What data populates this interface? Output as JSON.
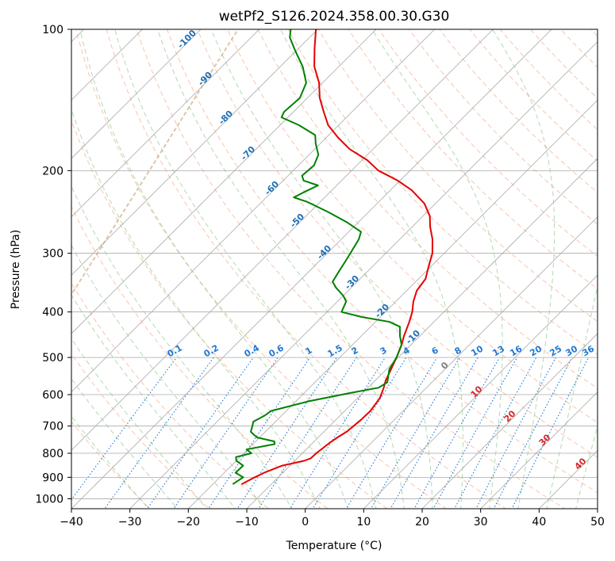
{
  "chart_data": {
    "type": "line",
    "title": "wetPf2_S126.2024.358.00.30.G30",
    "xlabel": "Temperature (°C)",
    "ylabel": "Pressure (hPa)",
    "xlim": [
      -40,
      50
    ],
    "ylim": [
      1050,
      100
    ],
    "y_scale": "log",
    "skew": "skew-T",
    "grid": true,
    "x_ticks": [
      "−40",
      "−30",
      "−20",
      "−10",
      "0",
      "10",
      "20",
      "30",
      "40",
      "50"
    ],
    "y_ticks": [
      "100",
      "200",
      "300",
      "400",
      "500",
      "600",
      "700",
      "800",
      "900",
      "1000"
    ],
    "y_tick_values": [
      100,
      200,
      300,
      400,
      500,
      600,
      700,
      800,
      900,
      1000
    ],
    "x_tick_values": [
      -40,
      -30,
      -20,
      -10,
      0,
      10,
      20,
      30,
      40,
      50
    ],
    "series": [
      {
        "color": "#e60000",
        "points": [
          [
            -15.1,
            931
          ],
          [
            -14,
            900
          ],
          [
            -13.2,
            880
          ],
          [
            -11.3,
            850
          ],
          [
            -8.4,
            830
          ],
          [
            -7.7,
            820
          ],
          [
            -7.6,
            800
          ],
          [
            -7.1,
            760
          ],
          [
            -6.7,
            740
          ],
          [
            -6.1,
            720
          ],
          [
            -5.9,
            700
          ],
          [
            -5.7,
            680
          ],
          [
            -5.6,
            650
          ],
          [
            -6.2,
            610
          ],
          [
            -7.3,
            580
          ],
          [
            -8.2,
            560
          ],
          [
            -9.2,
            530
          ],
          [
            -10.3,
            500
          ],
          [
            -11.6,
            470
          ],
          [
            -12.7,
            450
          ],
          [
            -14.2,
            420
          ],
          [
            -15.4,
            400
          ],
          [
            -17,
            380
          ],
          [
            -18.3,
            360
          ],
          [
            -18.8,
            340
          ],
          [
            -20.4,
            320
          ],
          [
            -22,
            300
          ],
          [
            -24.4,
            280
          ],
          [
            -27,
            263
          ],
          [
            -28.8,
            250
          ],
          [
            -31.9,
            235
          ],
          [
            -36.4,
            220
          ],
          [
            -40.4,
            210
          ],
          [
            -45.4,
            200
          ],
          [
            -49.1,
            190
          ],
          [
            -54,
            180
          ],
          [
            -58,
            170
          ],
          [
            -61.8,
            160
          ],
          [
            -64.8,
            150
          ],
          [
            -67.9,
            140
          ],
          [
            -70.6,
            130
          ],
          [
            -74.2,
            120
          ],
          [
            -77.2,
            110
          ],
          [
            -80.3,
            100
          ]
        ]
      },
      {
        "color": "#008000",
        "points": [
          [
            -16.6,
            931
          ],
          [
            -16,
            900
          ],
          [
            -18.1,
            880
          ],
          [
            -18,
            850
          ],
          [
            -20,
            830
          ],
          [
            -20.7,
            815
          ],
          [
            -18.7,
            800
          ],
          [
            -20.2,
            785
          ],
          [
            -16.3,
            765
          ],
          [
            -16.8,
            755
          ],
          [
            -20.5,
            740
          ],
          [
            -22.5,
            720
          ],
          [
            -23.2,
            700
          ],
          [
            -23.8,
            685
          ],
          [
            -22.9,
            665
          ],
          [
            -22.6,
            650
          ],
          [
            -17.8,
            620
          ],
          [
            -12.1,
            595
          ],
          [
            -8.2,
            580
          ],
          [
            -7.6,
            565
          ],
          [
            -9.5,
            530
          ],
          [
            -10.3,
            500
          ],
          [
            -11.6,
            470
          ],
          [
            -13.4,
            450
          ],
          [
            -15,
            430
          ],
          [
            -17.6,
            420
          ],
          [
            -23.2,
            410
          ],
          [
            -27.5,
            400
          ],
          [
            -28.5,
            380
          ],
          [
            -29.9,
            370
          ],
          [
            -32.6,
            355
          ],
          [
            -34.2,
            345
          ],
          [
            -34.8,
            330
          ],
          [
            -35.6,
            310
          ],
          [
            -36.5,
            290
          ],
          [
            -37,
            280
          ],
          [
            -37.9,
            270
          ],
          [
            -41.8,
            258
          ],
          [
            -46.9,
            245
          ],
          [
            -52.3,
            233
          ],
          [
            -55.3,
            228
          ],
          [
            -54.4,
            222
          ],
          [
            -53.2,
            215
          ],
          [
            -56.5,
            210
          ],
          [
            -57.6,
            205
          ],
          [
            -57.3,
            195
          ],
          [
            -58.4,
            185
          ],
          [
            -60.8,
            175
          ],
          [
            -62.3,
            168
          ],
          [
            -66.8,
            160
          ],
          [
            -71.1,
            154
          ],
          [
            -71.6,
            150
          ],
          [
            -71.3,
            140
          ],
          [
            -72.8,
            130
          ],
          [
            -76.2,
            120
          ],
          [
            -80.2,
            111
          ],
          [
            -83.4,
            104
          ],
          [
            -84.6,
            100
          ]
        ]
      }
    ],
    "isotherm_labels": [
      {
        "text": "-100",
        "t": -100
      },
      {
        "text": "-90",
        "t": -90
      },
      {
        "text": "-80",
        "t": -80
      },
      {
        "text": "-70",
        "t": -70
      },
      {
        "text": "-60",
        "t": -60
      },
      {
        "text": "-50",
        "t": -50
      },
      {
        "text": "-40",
        "t": -40
      },
      {
        "text": "-30",
        "t": -30
      },
      {
        "text": "-20",
        "t": -20
      },
      {
        "text": "-10",
        "t": -10
      },
      {
        "text": "0",
        "t": 0
      },
      {
        "text": "10",
        "t": 10
      },
      {
        "text": "20",
        "t": 20
      },
      {
        "text": "30",
        "t": 30
      },
      {
        "text": "40",
        "t": 40
      }
    ],
    "mixing_ratio_labels": [
      "0.1",
      "0.2",
      "0.4",
      "0.6",
      "1",
      "1.5",
      "2",
      "3",
      "4",
      "6",
      "8",
      "10",
      "13",
      "16",
      "20",
      "25",
      "30",
      "36"
    ],
    "mixing_ratio_values": [
      0.1,
      0.2,
      0.4,
      0.6,
      1,
      1.5,
      2,
      3,
      4,
      6,
      8,
      10,
      13,
      16,
      20,
      25,
      30,
      36
    ],
    "colors": {
      "temperature": "#e60000",
      "dewpoint": "#008000",
      "isotherm_grid": "#aaaaaa",
      "dry_adiabat": "#f4a582",
      "moist_adiabat": "#7fbf7b",
      "mixing_ratio": "#1f78d4",
      "isotherm_label_cold": "#1f6fb4",
      "isotherm_label_zero": "#808080",
      "isotherm_label_warm": "#d62728",
      "lcl_arc": "#c8a070"
    }
  }
}
